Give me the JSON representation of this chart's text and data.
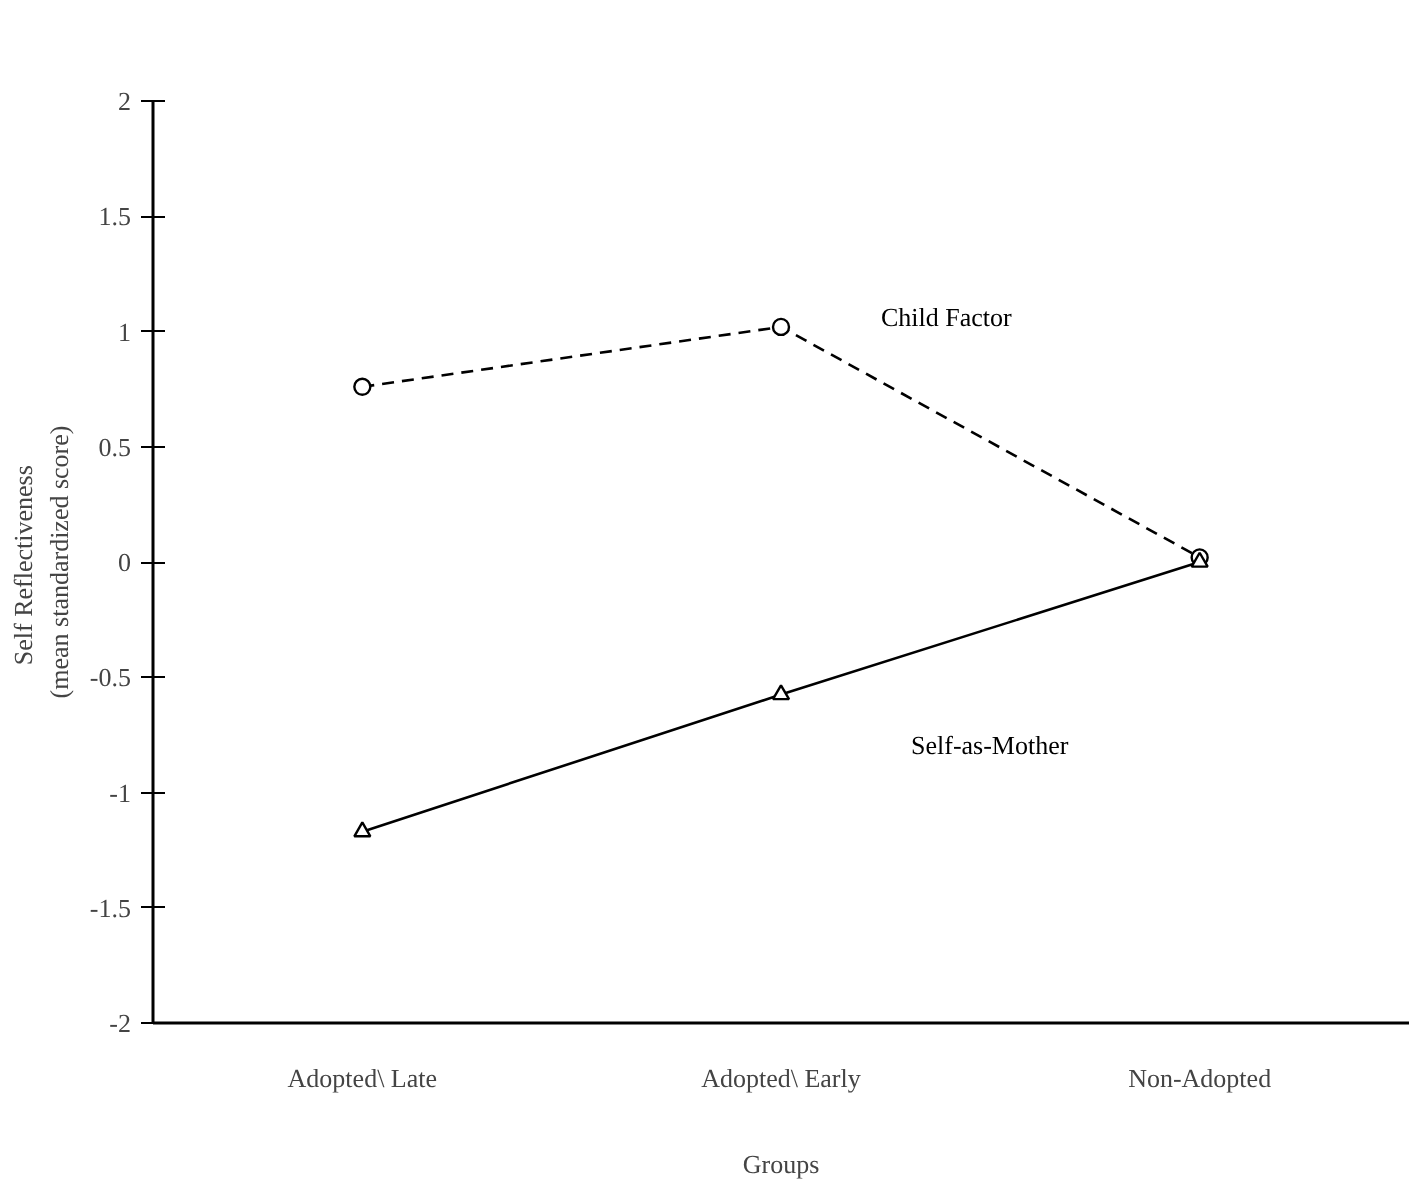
{
  "chart_data": {
    "type": "line",
    "xlabel": "Groups",
    "ylabel": "Self  Reflectiveness\n(mean standardized score)",
    "categories": [
      "Adopted\\ Late",
      "Adopted\\ Early",
      "Non-Adopted"
    ],
    "ylim": [
      -2,
      2
    ],
    "yticks": [
      -2,
      -1.5,
      -1,
      -0.5,
      0,
      0.5,
      1,
      1.5,
      2
    ],
    "grid": false,
    "legend": false,
    "series": [
      {
        "name": "Child Factor",
        "color": "#000000",
        "marker": "circle",
        "line_style": "dashed",
        "values": [
          0.76,
          1.02,
          0.02
        ]
      },
      {
        "name": "Self-as-Mother",
        "color": "#000000",
        "marker": "triangle",
        "line_style": "solid",
        "values": [
          -1.17,
          -0.575,
          0
        ]
      }
    ]
  }
}
